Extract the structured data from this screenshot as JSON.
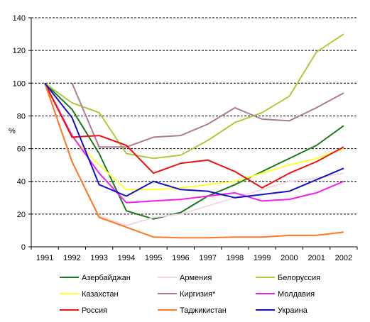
{
  "chart_data": {
    "type": "line",
    "ylabel": "%",
    "ylim": [
      0,
      140
    ],
    "yticks": [
      "0",
      "20",
      "40",
      "60",
      "80",
      "100",
      "120",
      "140"
    ],
    "x": [
      "1991",
      "1992",
      "1993",
      "1994",
      "1995",
      "1996",
      "1997",
      "1998",
      "1999",
      "2000",
      "2001",
      "2002"
    ],
    "grid": "horizontal dashed",
    "legend_position": "bottom",
    "series": [
      {
        "name": "Азербайджан",
        "color": "#1a7a1a",
        "values": [
          100,
          84,
          57,
          22,
          17,
          21,
          31,
          38,
          46,
          54,
          62,
          74
        ]
      },
      {
        "name": "Армения",
        "color": "#f5d8e8",
        "values": [
          100,
          52,
          19,
          13,
          18,
          20,
          25,
          30,
          35,
          40,
          42,
          45
        ]
      },
      {
        "name": "Белоруссия",
        "color": "#a8cc3c",
        "values": [
          100,
          88,
          82,
          57,
          54,
          56,
          65,
          76,
          82,
          92,
          119,
          130
        ]
      },
      {
        "name": "Казахстан",
        "color": "#ffff33",
        "values": [
          100,
          67,
          50,
          35,
          35,
          36,
          38,
          40,
          45,
          50,
          54,
          60
        ]
      },
      {
        "name": "Киргизия*",
        "color": "#b07a90",
        "values": [
          null,
          100,
          61,
          61,
          67,
          68,
          75,
          85,
          78,
          77,
          85,
          94
        ]
      },
      {
        "name": "Молдавия",
        "color": "#ee22ee",
        "values": [
          100,
          68,
          45,
          27,
          28,
          29,
          31,
          33,
          28,
          29,
          33,
          40
        ]
      },
      {
        "name": "Россия",
        "color": "#ee1111",
        "values": [
          100,
          67,
          68,
          62,
          45,
          51,
          53,
          46,
          36,
          45,
          52,
          61
        ]
      },
      {
        "name": "Таджикистан",
        "color": "#ff7722",
        "values": [
          100,
          52,
          18,
          12,
          6,
          5.5,
          5.5,
          6,
          6,
          7,
          7,
          9
        ]
      },
      {
        "name": "Украина",
        "color": "#1111cc",
        "values": [
          100,
          79,
          38,
          31,
          40,
          35,
          34,
          30,
          32,
          34,
          41,
          48
        ]
      }
    ]
  }
}
